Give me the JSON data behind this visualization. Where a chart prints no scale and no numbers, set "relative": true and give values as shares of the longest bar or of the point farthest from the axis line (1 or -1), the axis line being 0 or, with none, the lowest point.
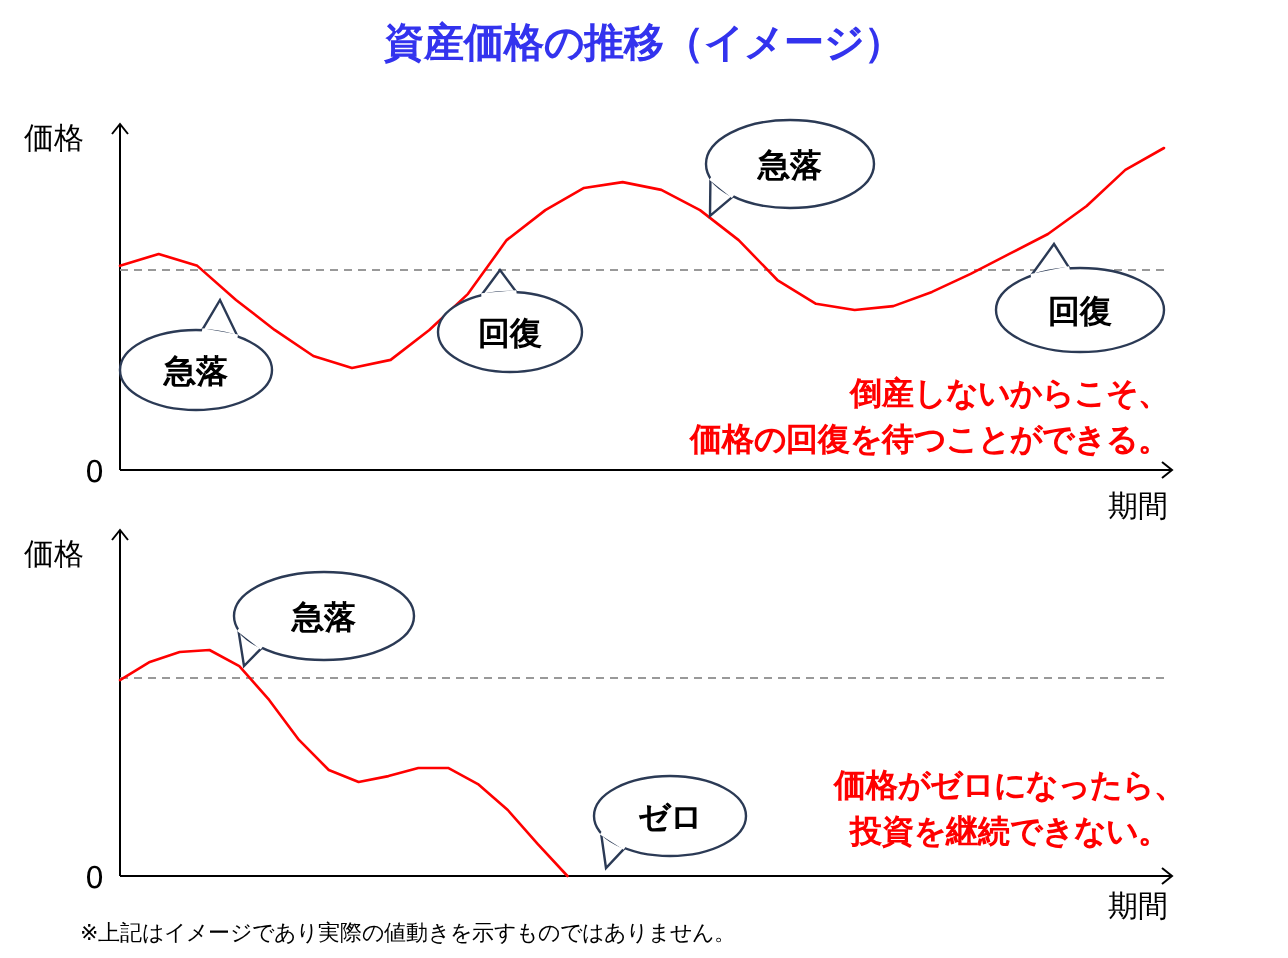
{
  "chart_data": [
    {
      "type": "line",
      "relative": true,
      "title": "資産価格の推移（イメージ）",
      "xlabel": "期間",
      "ylabel": "価格",
      "categories": [
        null,
        null,
        null,
        null,
        null,
        null,
        null,
        null,
        null,
        null,
        null,
        null,
        null,
        null,
        null,
        null,
        null,
        null,
        null,
        null,
        null,
        null,
        null,
        null,
        null,
        null,
        null,
        null
      ],
      "series": [
        {
          "color": "#ff0000",
          "values": [
            0.634,
            0.671,
            0.634,
            0.528,
            0.435,
            0.354,
            0.317,
            0.342,
            0.435,
            0.547,
            0.714,
            0.807,
            0.876,
            0.894,
            0.87,
            0.807,
            0.714,
            0.59,
            0.516,
            0.497,
            0.509,
            0.553,
            0.609,
            0.671,
            0.733,
            0.82,
            0.932,
            1
          ]
        }
      ],
      "ref_lines": [
        {
          "axis": "y",
          "value": 0.621,
          "color": "#999999",
          "line_style": "dashed"
        }
      ],
      "annotations": [
        "0",
        "急落",
        "回復",
        "急落",
        "回復",
        "倒産しないからこそ、",
        "価格の回復を待つことができる。"
      ]
    },
    {
      "type": "line",
      "relative": true,
      "xlabel": "期間",
      "ylabel": "価格",
      "categories": [
        null,
        null,
        null,
        null,
        null,
        null,
        null,
        null,
        null,
        null,
        null,
        null,
        null,
        null,
        null,
        null,
        null,
        null,
        null,
        null,
        null,
        null,
        null,
        null,
        null,
        null,
        null,
        null,
        null,
        null,
        null,
        null,
        null,
        null,
        null,
        null
      ],
      "series": [
        {
          "color": "#ff0000",
          "values": [
            0.867,
            0.947,
            0.991,
            1,
            0.929,
            0.779,
            0.602,
            0.469,
            0.416,
            0.442,
            0.478,
            0.478,
            0.407,
            0.292,
            0.142,
            0,
            null,
            null,
            null,
            null,
            null,
            null,
            null,
            null,
            null,
            null,
            null,
            null,
            null,
            null,
            null,
            null,
            null,
            null,
            null,
            null
          ]
        }
      ],
      "ref_lines": [
        {
          "axis": "y",
          "value": 0.876,
          "color": "#999999",
          "line_style": "dashed"
        }
      ],
      "annotations": [
        "0",
        "急落",
        "ゼロ",
        "価格がゼロになったら、",
        "投資を継続できない。",
        "※上記はイメージであり実際の値動きを示すものではありません。"
      ]
    }
  ]
}
